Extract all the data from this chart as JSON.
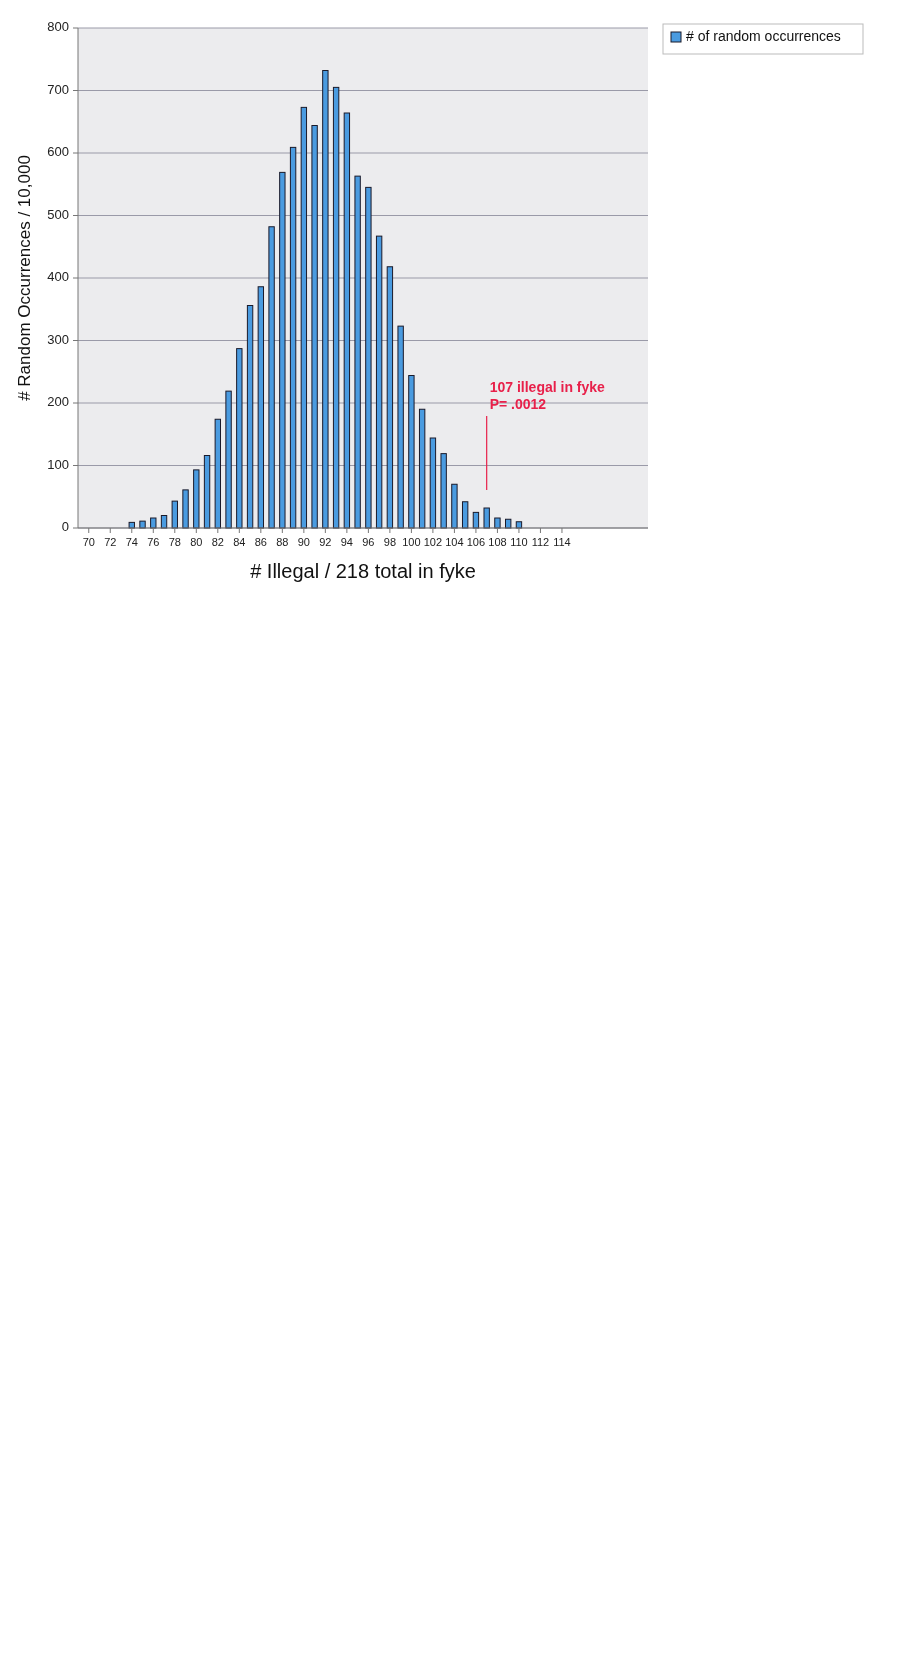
{
  "chart_data": {
    "type": "bar",
    "xlabel": "# Illegal / 218 total in fyke",
    "ylabel": "# Random Occurrences / 10,000",
    "x": [
      70,
      71,
      72,
      73,
      74,
      75,
      76,
      77,
      78,
      79,
      80,
      81,
      82,
      83,
      84,
      85,
      86,
      87,
      88,
      89,
      90,
      91,
      92,
      93,
      94,
      95,
      96,
      97,
      98,
      99,
      100,
      101,
      102,
      103,
      104,
      105,
      106,
      107,
      108,
      109,
      110,
      111,
      112,
      113,
      114
    ],
    "series": [
      {
        "name": "# of random occurrences",
        "color": "#4a9be0",
        "values": [
          0,
          0,
          0,
          0,
          9,
          11,
          16,
          20,
          43,
          61,
          93,
          116,
          174,
          219,
          287,
          356,
          386,
          482,
          569,
          609,
          673,
          644,
          732,
          705,
          664,
          563,
          545,
          467,
          418,
          323,
          244,
          190,
          144,
          119,
          70,
          42,
          25,
          32,
          16,
          14,
          10,
          0,
          0,
          0,
          0
        ]
      }
    ],
    "xlim": [
      69,
      122
    ],
    "xticks": [
      70,
      72,
      74,
      76,
      78,
      80,
      82,
      84,
      86,
      88,
      90,
      92,
      94,
      96,
      98,
      100,
      102,
      104,
      106,
      108,
      110,
      112,
      114
    ],
    "ylim": [
      0,
      800
    ],
    "yticks": [
      0,
      100,
      200,
      300,
      400,
      500,
      600,
      700,
      800
    ],
    "grid": "y",
    "legend": "right",
    "ref_lines": [
      {
        "axis": "x",
        "value": 107,
        "label": "107 illegal in fyke\nP= .0012",
        "color": "#e8204a"
      }
    ]
  }
}
